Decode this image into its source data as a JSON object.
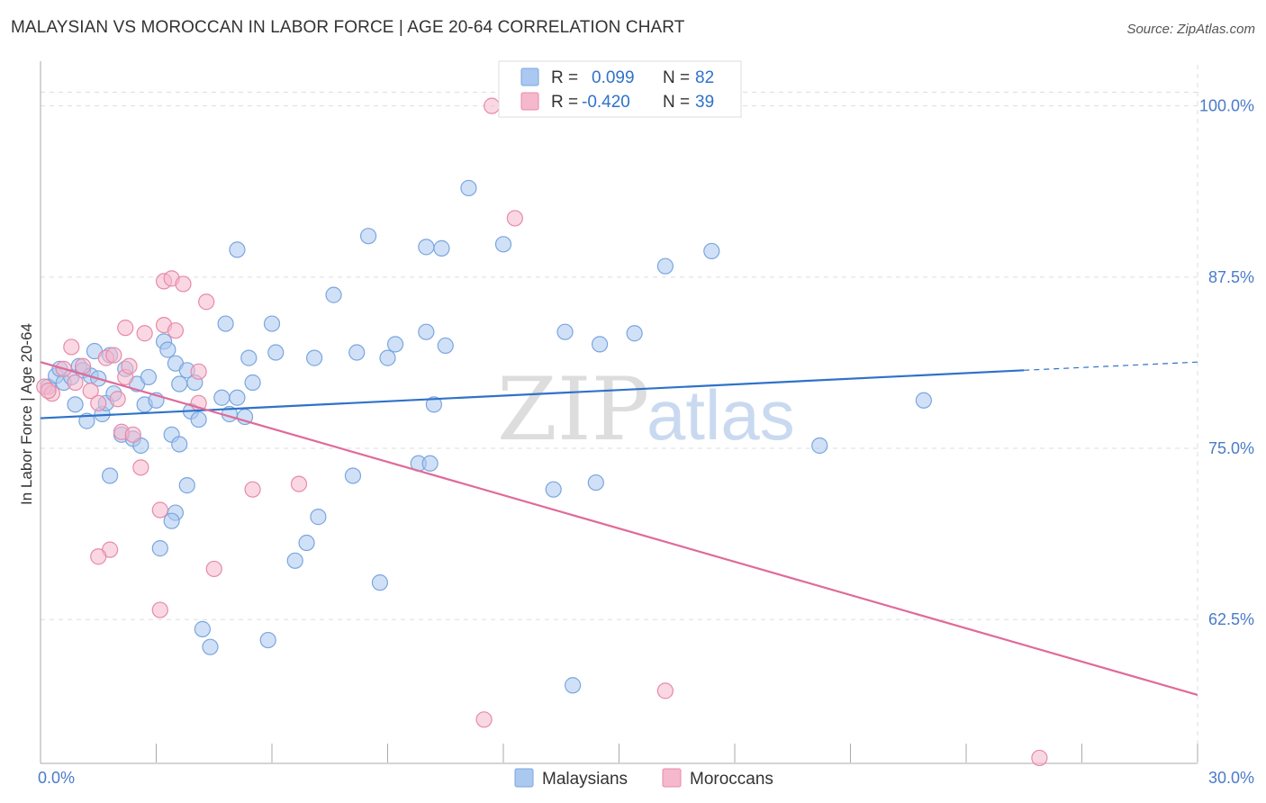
{
  "header": {
    "title": "MALAYSIAN VS MOROCCAN IN LABOR FORCE | AGE 20-64 CORRELATION CHART",
    "source": "Source: ZipAtlas.com"
  },
  "watermark": {
    "zip": "ZIP",
    "atlas": "atlas"
  },
  "colors": {
    "malaysians_fill": "#aac8f0",
    "malaysians_stroke": "#7aa6de",
    "malaysians_line": "#2f72c9",
    "moroccans_fill": "#f6b8cc",
    "moroccans_stroke": "#e88aa8",
    "moroccans_line": "#e06a98",
    "tick_label": "#4a7bc8",
    "grid": "#dddddd"
  },
  "stats": [
    {
      "r_label": "R =",
      "r_value": "0.099",
      "n_label": "N =",
      "n_value": "82"
    },
    {
      "r_label": "R =",
      "r_value": "-0.420",
      "n_label": "N =",
      "n_value": "39"
    }
  ],
  "chart_data": {
    "type": "scatter",
    "title": "MALAYSIAN VS MOROCCAN IN LABOR FORCE | AGE 20-64 CORRELATION CHART",
    "xlabel": "",
    "ylabel": "In Labor Force | Age 20-64",
    "xlim": [
      0,
      30
    ],
    "ylim": [
      52,
      103
    ],
    "x_tick_labels": [
      "0.0%",
      "30.0%"
    ],
    "y_ticks": [
      62.5,
      75.0,
      87.5,
      100.0
    ],
    "y_tick_labels": [
      "62.5%",
      "75.0%",
      "87.5%",
      "100.0%"
    ],
    "grid": true,
    "legend_position": "bottom-center",
    "series": [
      {
        "name": "Malaysians",
        "points": [
          [
            0.2,
            79.5
          ],
          [
            0.4,
            80.3
          ],
          [
            0.5,
            80.8
          ],
          [
            0.6,
            79.8
          ],
          [
            0.8,
            80.2
          ],
          [
            1.0,
            81.0
          ],
          [
            1.1,
            80.7
          ],
          [
            1.3,
            80.3
          ],
          [
            0.9,
            78.2
          ],
          [
            1.2,
            77.0
          ],
          [
            1.6,
            77.5
          ],
          [
            1.7,
            78.3
          ],
          [
            1.9,
            79.0
          ],
          [
            1.5,
            80.1
          ],
          [
            1.4,
            82.1
          ],
          [
            1.8,
            81.8
          ],
          [
            2.2,
            80.8
          ],
          [
            2.1,
            76.0
          ],
          [
            2.4,
            75.7
          ],
          [
            2.6,
            75.2
          ],
          [
            2.7,
            78.2
          ],
          [
            2.5,
            79.7
          ],
          [
            2.8,
            80.2
          ],
          [
            3.0,
            78.5
          ],
          [
            3.2,
            82.8
          ],
          [
            3.3,
            82.2
          ],
          [
            3.5,
            81.2
          ],
          [
            3.6,
            79.7
          ],
          [
            3.8,
            80.7
          ],
          [
            4.0,
            79.8
          ],
          [
            3.9,
            77.7
          ],
          [
            4.1,
            77.1
          ],
          [
            3.4,
            76.0
          ],
          [
            3.6,
            75.3
          ],
          [
            1.8,
            73.0
          ],
          [
            3.8,
            72.3
          ],
          [
            3.5,
            70.3
          ],
          [
            3.4,
            69.7
          ],
          [
            3.1,
            67.7
          ],
          [
            4.7,
            78.7
          ],
          [
            4.9,
            77.5
          ],
          [
            5.1,
            78.7
          ],
          [
            5.4,
            81.6
          ],
          [
            5.5,
            79.8
          ],
          [
            4.8,
            84.1
          ],
          [
            5.1,
            89.5
          ],
          [
            6.0,
            84.1
          ],
          [
            6.1,
            82.0
          ],
          [
            7.1,
            81.6
          ],
          [
            7.6,
            86.2
          ],
          [
            8.2,
            82.0
          ],
          [
            8.5,
            90.5
          ],
          [
            9.0,
            81.6
          ],
          [
            9.2,
            82.6
          ],
          [
            10.0,
            83.5
          ],
          [
            10.5,
            82.5
          ],
          [
            10.0,
            89.7
          ],
          [
            10.4,
            89.6
          ],
          [
            11.1,
            94.0
          ],
          [
            12.0,
            89.9
          ],
          [
            13.6,
            83.5
          ],
          [
            14.5,
            82.6
          ],
          [
            15.4,
            83.4
          ],
          [
            16.2,
            88.3
          ],
          [
            17.4,
            89.4
          ],
          [
            20.2,
            75.2
          ],
          [
            22.9,
            78.5
          ],
          [
            10.2,
            78.2
          ],
          [
            9.8,
            73.9
          ],
          [
            10.1,
            73.9
          ],
          [
            8.1,
            73.0
          ],
          [
            13.3,
            72.0
          ],
          [
            14.4,
            72.5
          ],
          [
            7.2,
            70.0
          ],
          [
            6.9,
            68.1
          ],
          [
            6.6,
            66.8
          ],
          [
            8.8,
            65.2
          ],
          [
            4.2,
            61.8
          ],
          [
            4.4,
            60.5
          ],
          [
            5.9,
            61.0
          ],
          [
            13.8,
            57.7
          ],
          [
            5.3,
            77.3
          ]
        ],
        "trend": {
          "x": [
            0,
            25.5
          ],
          "y": [
            77.2,
            80.7
          ],
          "dashed_to": [
            30,
            81.3
          ]
        }
      },
      {
        "name": "Moroccans",
        "points": [
          [
            0.1,
            79.5
          ],
          [
            0.3,
            79.0
          ],
          [
            0.6,
            80.8
          ],
          [
            0.8,
            82.4
          ],
          [
            0.9,
            79.8
          ],
          [
            1.1,
            81.0
          ],
          [
            1.3,
            79.2
          ],
          [
            1.5,
            78.3
          ],
          [
            1.7,
            81.6
          ],
          [
            1.9,
            81.8
          ],
          [
            2.0,
            78.6
          ],
          [
            2.2,
            80.2
          ],
          [
            2.3,
            81.0
          ],
          [
            2.1,
            76.2
          ],
          [
            2.4,
            76.0
          ],
          [
            2.6,
            73.6
          ],
          [
            2.2,
            83.8
          ],
          [
            2.7,
            83.4
          ],
          [
            3.2,
            84.0
          ],
          [
            3.5,
            83.6
          ],
          [
            3.2,
            87.2
          ],
          [
            3.4,
            87.4
          ],
          [
            3.7,
            87.0
          ],
          [
            4.3,
            85.7
          ],
          [
            4.1,
            78.3
          ],
          [
            4.1,
            80.6
          ],
          [
            3.1,
            70.5
          ],
          [
            1.8,
            67.6
          ],
          [
            1.5,
            67.1
          ],
          [
            4.5,
            66.2
          ],
          [
            5.5,
            72.0
          ],
          [
            6.7,
            72.4
          ],
          [
            3.1,
            63.2
          ],
          [
            11.7,
            100.0
          ],
          [
            12.3,
            91.8
          ],
          [
            16.2,
            57.3
          ],
          [
            11.5,
            55.2
          ],
          [
            25.9,
            52.4
          ],
          [
            0.2,
            79.2
          ]
        ],
        "trend": {
          "x": [
            0,
            30
          ],
          "y": [
            81.3,
            57.0
          ]
        }
      }
    ]
  }
}
